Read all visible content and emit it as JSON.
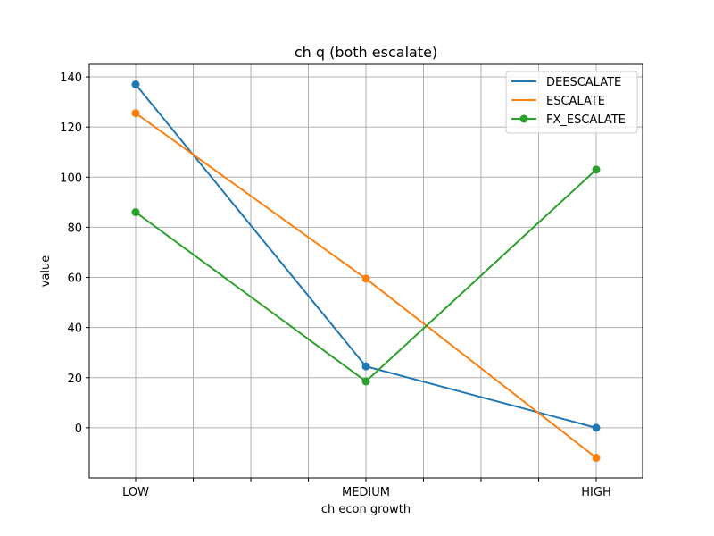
{
  "chart_data": {
    "type": "line",
    "title": "ch q (both escalate)",
    "xlabel": "ch econ growth",
    "ylabel": "value",
    "categories": [
      "LOW",
      "MEDIUM",
      "HIGH"
    ],
    "ylim": [
      -20,
      145
    ],
    "yticks": [
      0,
      20,
      40,
      60,
      80,
      100,
      120,
      140
    ],
    "grid": true,
    "legend_position": "top-right",
    "series": [
      {
        "name": "DEESCALATE",
        "color": "#1f77b4",
        "values": [
          137,
          24.5,
          0
        ]
      },
      {
        "name": "ESCALATE",
        "color": "#ff7f0e",
        "values": [
          125.5,
          59.5,
          -12
        ]
      },
      {
        "name": "FX_ESCALATE",
        "color": "#2ca02c",
        "values": [
          86,
          18.5,
          103
        ]
      }
    ]
  }
}
